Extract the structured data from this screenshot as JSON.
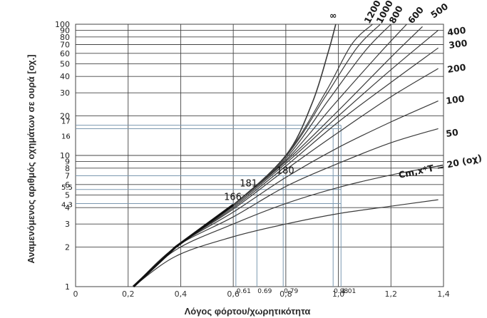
{
  "chart_data": {
    "type": "line",
    "xlabel": "Λόγος φόρτου/χωρητικότητα",
    "ylabel": "Αναμενόμενος αριθμός οχημάτων σε ουρά [οχ.]",
    "xlim": [
      0,
      1.4
    ],
    "ylim": [
      1,
      100
    ],
    "y_scale": "log",
    "grid": true,
    "x_ticks": [
      "0",
      "0,2",
      "0,4",
      "0,6",
      "0,8",
      "1,0",
      "1,2",
      "1,4"
    ],
    "y_ticks": [
      "1",
      "2",
      "3",
      "4",
      "5",
      "6",
      "7",
      "8",
      "9",
      "10",
      "20",
      "30",
      "40",
      "50",
      "60",
      "70",
      "80",
      "90",
      "100"
    ],
    "curve_labels": [
      "∞",
      "1200",
      "1000",
      "800",
      "600",
      "500",
      "400",
      "300",
      "200",
      "100",
      "50",
      "Cm,x*T = 20 (οχ)"
    ],
    "series": [
      {
        "label": "∞",
        "x": [
          0.22,
          0.38,
          0.6,
          0.8,
          0.9,
          0.96,
          0.99
        ],
        "y": [
          1,
          2,
          4.2,
          10,
          25,
          60,
          100
        ]
      },
      {
        "label": "1200",
        "x": [
          0.22,
          0.38,
          0.6,
          0.8,
          0.95,
          1.05,
          1.13
        ],
        "y": [
          1,
          2,
          4.2,
          10,
          30,
          70,
          100
        ]
      },
      {
        "label": "1000",
        "x": [
          0.22,
          0.38,
          0.6,
          0.8,
          0.95,
          1.07,
          1.16
        ],
        "y": [
          1,
          2,
          4.2,
          9.8,
          28,
          66,
          100
        ]
      },
      {
        "label": "800",
        "x": [
          0.22,
          0.38,
          0.6,
          0.8,
          0.96,
          1.1,
          1.2
        ],
        "y": [
          1,
          2,
          4.2,
          9.5,
          26,
          62,
          100
        ]
      },
      {
        "label": "600",
        "x": [
          0.22,
          0.38,
          0.6,
          0.8,
          0.98,
          1.15,
          1.26
        ],
        "y": [
          1,
          2,
          4.2,
          9.2,
          24,
          58,
          100
        ]
      },
      {
        "label": "500",
        "x": [
          0.22,
          0.38,
          0.6,
          0.8,
          1.0,
          1.2,
          1.32
        ],
        "y": [
          1,
          2,
          4.2,
          9,
          22,
          56,
          96
        ]
      },
      {
        "label": "400",
        "x": [
          0.22,
          0.38,
          0.6,
          0.8,
          1.0,
          1.2,
          1.38
        ],
        "y": [
          1,
          2,
          4.1,
          8.7,
          20,
          45,
          90
        ]
      },
      {
        "label": "300",
        "x": [
          0.22,
          0.38,
          0.6,
          0.8,
          1.0,
          1.2,
          1.38
        ],
        "y": [
          1,
          2,
          4.0,
          8.3,
          18,
          36,
          66
        ]
      },
      {
        "label": "200",
        "x": [
          0.22,
          0.38,
          0.6,
          0.8,
          1.0,
          1.2,
          1.38
        ],
        "y": [
          1,
          2,
          3.9,
          7.8,
          15,
          28,
          46
        ]
      },
      {
        "label": "100",
        "x": [
          0.22,
          0.38,
          0.6,
          0.8,
          1.0,
          1.2,
          1.38
        ],
        "y": [
          1,
          2,
          3.7,
          6.8,
          11.5,
          18,
          26
        ]
      },
      {
        "label": "50",
        "x": [
          0.22,
          0.38,
          0.6,
          0.8,
          1.0,
          1.2,
          1.38
        ],
        "y": [
          1,
          2,
          3.4,
          5.8,
          8.7,
          12.5,
          16
        ]
      },
      {
        "label": "20",
        "x": [
          0.22,
          0.38,
          0.6,
          0.8,
          1.0,
          1.2,
          1.38
        ],
        "y": [
          1,
          1.9,
          3.0,
          4.3,
          5.7,
          7.1,
          8.3
        ]
      },
      {
        "label": "",
        "x": [
          0.22,
          0.38,
          0.6,
          0.8,
          1.0,
          1.2,
          1.38
        ],
        "y": [
          1,
          1.7,
          2.4,
          3.0,
          3.6,
          4.1,
          4.6
        ]
      }
    ],
    "reference_lines": {
      "x": [
        {
          "label": "0.61",
          "value": 0.61
        },
        {
          "label": "0.69",
          "value": 0.69
        },
        {
          "label": "0.79",
          "value": 0.79
        },
        {
          "label": "0.98",
          "value": 0.98
        },
        {
          "label": "1.01",
          "value": 1.01
        }
      ],
      "y": [
        {
          "label": "17",
          "value": 17
        },
        {
          "label": "16",
          "value": 16
        },
        {
          "label": "",
          "value": 7
        },
        {
          "label": "5.5",
          "value": 5.5
        },
        {
          "label": "4.3",
          "value": 4.3
        }
      ]
    },
    "point_labels": [
      {
        "label": "180",
        "x": 0.8,
        "y": 7
      },
      {
        "label": "181",
        "x": 0.66,
        "y": 5.6
      },
      {
        "label": "166",
        "x": 0.6,
        "y": 4.4
      }
    ]
  }
}
